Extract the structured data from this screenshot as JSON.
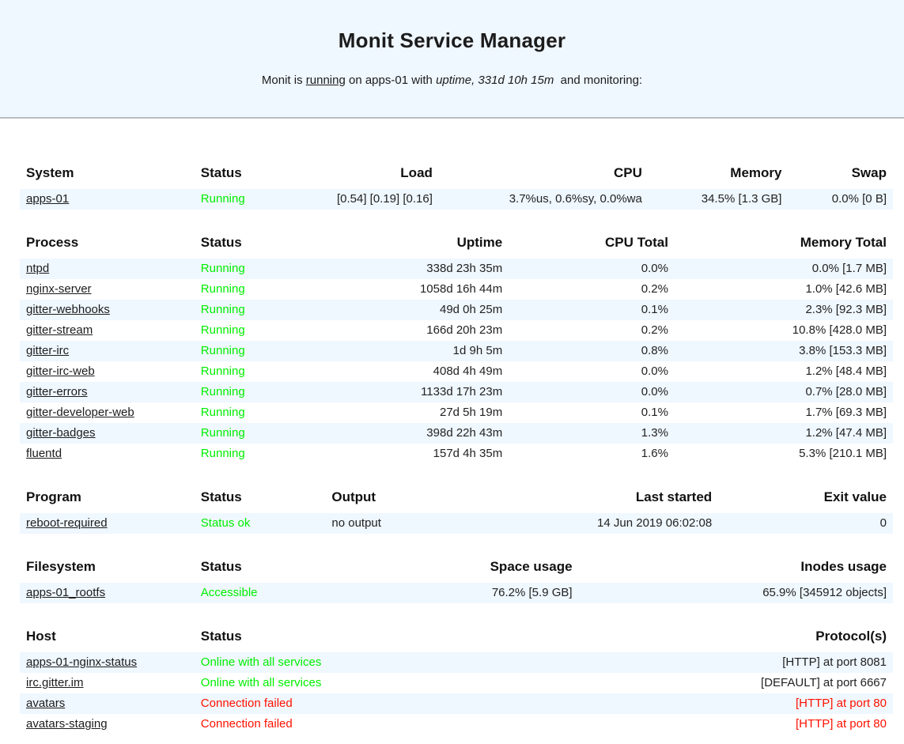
{
  "header": {
    "title": "Monit Service Manager",
    "summary_prefix": "Monit is ",
    "running_link": "running",
    "summary_middle": " on apps-01 with ",
    "uptime": "uptime, 331d 10h 15m",
    "summary_suffix": "  and monitoring:"
  },
  "colors": {
    "ok": "#00ee00",
    "error": "#ff1100",
    "banner_bg": "#eff7ff",
    "stripe_bg": "#eff7ff",
    "border": "#b9bdc1"
  },
  "tables": [
    {
      "id": "system",
      "columns": [
        {
          "label": "System",
          "align": "left",
          "width": "20%"
        },
        {
          "label": "Status",
          "align": "left",
          "width": "15%"
        },
        {
          "label": "Load",
          "align": "right",
          "width": "13%"
        },
        {
          "label": "CPU",
          "align": "right",
          "width": "24%"
        },
        {
          "label": "Memory",
          "align": "right",
          "width": "16%"
        },
        {
          "label": "Swap",
          "align": "right",
          "width": "12%"
        }
      ],
      "rows": [
        [
          {
            "text": "apps-01",
            "link": true
          },
          {
            "text": "Running",
            "color": "green"
          },
          {
            "text": "[0.54] [0.19] [0.16]"
          },
          {
            "text": "3.7%us, 0.6%sy, 0.0%wa"
          },
          {
            "text": "34.5% [1.3 GB]"
          },
          {
            "text": "0.0% [0 B]"
          }
        ]
      ]
    },
    {
      "id": "process",
      "columns": [
        {
          "label": "Process",
          "align": "left",
          "width": "20%"
        },
        {
          "label": "Status",
          "align": "left",
          "width": "15%"
        },
        {
          "label": "Uptime",
          "align": "right",
          "width": "21%"
        },
        {
          "label": "CPU Total",
          "align": "right",
          "width": "19%"
        },
        {
          "label": "Memory Total",
          "align": "right",
          "width": "25%"
        }
      ],
      "rows": [
        [
          {
            "text": "ntpd",
            "link": true
          },
          {
            "text": "Running",
            "color": "green"
          },
          {
            "text": "338d 23h 35m"
          },
          {
            "text": "0.0%"
          },
          {
            "text": "0.0% [1.7 MB]"
          }
        ],
        [
          {
            "text": "nginx-server",
            "link": true
          },
          {
            "text": "Running",
            "color": "green"
          },
          {
            "text": "1058d 16h 44m"
          },
          {
            "text": "0.2%"
          },
          {
            "text": "1.0% [42.6 MB]"
          }
        ],
        [
          {
            "text": "gitter-webhooks",
            "link": true
          },
          {
            "text": "Running",
            "color": "green"
          },
          {
            "text": "49d 0h 25m"
          },
          {
            "text": "0.1%"
          },
          {
            "text": "2.3% [92.3 MB]"
          }
        ],
        [
          {
            "text": "gitter-stream",
            "link": true
          },
          {
            "text": "Running",
            "color": "green"
          },
          {
            "text": "166d 20h 23m"
          },
          {
            "text": "0.2%"
          },
          {
            "text": "10.8% [428.0 MB]"
          }
        ],
        [
          {
            "text": "gitter-irc",
            "link": true
          },
          {
            "text": "Running",
            "color": "green"
          },
          {
            "text": "1d 9h 5m"
          },
          {
            "text": "0.8%"
          },
          {
            "text": "3.8% [153.3 MB]"
          }
        ],
        [
          {
            "text": "gitter-irc-web",
            "link": true
          },
          {
            "text": "Running",
            "color": "green"
          },
          {
            "text": "408d 4h 49m"
          },
          {
            "text": "0.0%"
          },
          {
            "text": "1.2% [48.4 MB]"
          }
        ],
        [
          {
            "text": "gitter-errors",
            "link": true
          },
          {
            "text": "Running",
            "color": "green"
          },
          {
            "text": "1133d 17h 23m"
          },
          {
            "text": "0.0%"
          },
          {
            "text": "0.7% [28.0 MB]"
          }
        ],
        [
          {
            "text": "gitter-developer-web",
            "link": true
          },
          {
            "text": "Running",
            "color": "green"
          },
          {
            "text": "27d 5h 19m"
          },
          {
            "text": "0.1%"
          },
          {
            "text": "1.7% [69.3 MB]"
          }
        ],
        [
          {
            "text": "gitter-badges",
            "link": true
          },
          {
            "text": "Running",
            "color": "green"
          },
          {
            "text": "398d 22h 43m"
          },
          {
            "text": "1.3%"
          },
          {
            "text": "1.2% [47.4 MB]"
          }
        ],
        [
          {
            "text": "fluentd",
            "link": true
          },
          {
            "text": "Running",
            "color": "green"
          },
          {
            "text": "157d 4h 35m"
          },
          {
            "text": "1.6%"
          },
          {
            "text": "5.3% [210.1 MB]"
          }
        ]
      ]
    },
    {
      "id": "program",
      "columns": [
        {
          "label": "Program",
          "align": "left",
          "width": "20%"
        },
        {
          "label": "Status",
          "align": "left",
          "width": "15%"
        },
        {
          "label": "Output",
          "align": "left",
          "width": "20%"
        },
        {
          "label": "Last started",
          "align": "right",
          "width": "25%"
        },
        {
          "label": "Exit value",
          "align": "right",
          "width": "20%"
        }
      ],
      "rows": [
        [
          {
            "text": "reboot-required",
            "link": true
          },
          {
            "text": "Status ok",
            "color": "green"
          },
          {
            "text": "no output"
          },
          {
            "text": "14 Jun 2019 06:02:08"
          },
          {
            "text": "0"
          }
        ]
      ]
    },
    {
      "id": "filesystem",
      "columns": [
        {
          "label": "Filesystem",
          "align": "left",
          "width": "20%"
        },
        {
          "label": "Status",
          "align": "left",
          "width": "15%"
        },
        {
          "label": "Space usage",
          "align": "right",
          "width": "29%"
        },
        {
          "label": "Inodes usage",
          "align": "right",
          "width": "36%"
        }
      ],
      "rows": [
        [
          {
            "text": "apps-01_rootfs",
            "link": true
          },
          {
            "text": "Accessible",
            "color": "green"
          },
          {
            "text": "76.2% [5.9 GB]"
          },
          {
            "text": "65.9% [345912 objects]"
          }
        ]
      ]
    },
    {
      "id": "host",
      "columns": [
        {
          "label": "Host",
          "align": "left",
          "width": "20%"
        },
        {
          "label": "Status",
          "align": "left",
          "width": "15%"
        },
        {
          "label": "Protocol(s)",
          "align": "right",
          "width": "65%"
        }
      ],
      "rows": [
        [
          {
            "text": "apps-01-nginx-status",
            "link": true
          },
          {
            "text": "Online with all services",
            "color": "green"
          },
          {
            "text": "[HTTP] at port 8081"
          }
        ],
        [
          {
            "text": "irc.gitter.im",
            "link": true
          },
          {
            "text": "Online with all services",
            "color": "green"
          },
          {
            "text": "[DEFAULT] at port 6667"
          }
        ],
        [
          {
            "text": "avatars",
            "link": true
          },
          {
            "text": "Connection failed",
            "color": "red"
          },
          {
            "text": "[HTTP] at port 80",
            "color": "red"
          }
        ],
        [
          {
            "text": "avatars-staging",
            "link": true
          },
          {
            "text": "Connection failed",
            "color": "red"
          },
          {
            "text": "[HTTP] at port 80",
            "color": "red"
          }
        ]
      ]
    }
  ]
}
